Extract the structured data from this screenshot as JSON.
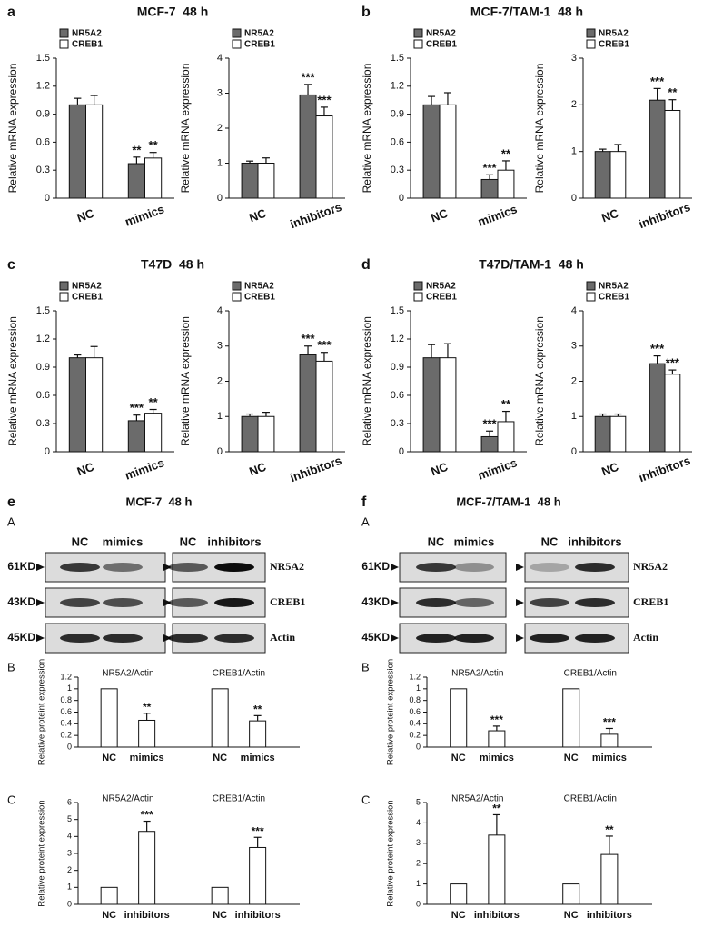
{
  "panels": [
    {
      "letter": "a",
      "title": "MCF-7  48 h"
    },
    {
      "letter": "b",
      "title": "MCF-7/TAM-1  48 h"
    },
    {
      "letter": "c",
      "title": "T47D  48 h"
    },
    {
      "letter": "d",
      "title": "T47D/TAM-1  48 h"
    }
  ],
  "blot_panels": [
    {
      "letter": "e",
      "title": "MCF-7  48 h",
      "sub_labels": [
        "A",
        "B",
        "C"
      ],
      "lanes": [
        "NC",
        "mimics",
        "NC",
        "inhibitors"
      ],
      "rows": [
        {
          "marker": "61KD",
          "protein": "NR5A2"
        },
        {
          "marker": "43KD",
          "protein": "CREB1"
        },
        {
          "marker": "45KD",
          "protein": "Actin"
        }
      ]
    },
    {
      "letter": "f",
      "title": "MCF-7/TAM-1  48 h",
      "sub_labels": [
        "A",
        "B",
        "C"
      ],
      "lanes": [
        "NC",
        "mimics",
        "NC",
        "inhibitors"
      ],
      "rows": [
        {
          "marker": "61KD",
          "protein": "NR5A2"
        },
        {
          "marker": "43KD",
          "protein": "CREB1"
        },
        {
          "marker": "45KD",
          "protein": "Actin"
        }
      ]
    }
  ],
  "chart_data": [
    {
      "type": "bar",
      "ylabel": "Relative mRNA expression",
      "categories": [
        "NC",
        "mimics"
      ],
      "ylim": [
        0,
        1.5
      ],
      "yticks": [
        0,
        0.3,
        0.6,
        0.9,
        1.2,
        1.5
      ],
      "series": [
        {
          "name": "NR5A2",
          "color": "#6b6b6b",
          "values": [
            1.0,
            0.37
          ],
          "errors": [
            0.07,
            0.07
          ],
          "annotations": [
            null,
            "**"
          ]
        },
        {
          "name": "CREB1",
          "color": "#ffffff",
          "values": [
            1.0,
            0.43
          ],
          "errors": [
            0.1,
            0.06
          ],
          "annotations": [
            null,
            "**"
          ]
        }
      ]
    },
    {
      "type": "bar",
      "ylabel": "Relative mRNA expression",
      "categories": [
        "NC",
        "inhibitors"
      ],
      "ylim": [
        0,
        4
      ],
      "yticks": [
        0,
        1,
        2,
        3,
        4
      ],
      "series": [
        {
          "name": "NR5A2",
          "color": "#6b6b6b",
          "values": [
            1.0,
            2.95
          ],
          "errors": [
            0.06,
            0.3
          ],
          "annotations": [
            null,
            "***"
          ]
        },
        {
          "name": "CREB1",
          "color": "#ffffff",
          "values": [
            1.0,
            2.35
          ],
          "errors": [
            0.15,
            0.25
          ],
          "annotations": [
            null,
            "***"
          ]
        }
      ]
    },
    {
      "type": "bar",
      "ylabel": "Relative mRNA expression",
      "categories": [
        "NC",
        "mimics"
      ],
      "ylim": [
        0,
        1.5
      ],
      "yticks": [
        0,
        0.3,
        0.6,
        0.9,
        1.2,
        1.5
      ],
      "series": [
        {
          "name": "NR5A2",
          "color": "#6b6b6b",
          "values": [
            1.0,
            0.2
          ],
          "errors": [
            0.09,
            0.05
          ],
          "annotations": [
            null,
            "***"
          ]
        },
        {
          "name": "CREB1",
          "color": "#ffffff",
          "values": [
            1.0,
            0.3
          ],
          "errors": [
            0.13,
            0.1
          ],
          "annotations": [
            null,
            "**"
          ]
        }
      ]
    },
    {
      "type": "bar",
      "ylabel": "Relative mRNA expression",
      "categories": [
        "NC",
        "inhibitors"
      ],
      "ylim": [
        0,
        3
      ],
      "yticks": [
        0,
        1,
        2,
        3
      ],
      "series": [
        {
          "name": "NR5A2",
          "color": "#6b6b6b",
          "values": [
            1.0,
            2.1
          ],
          "errors": [
            0.05,
            0.25
          ],
          "annotations": [
            null,
            "***"
          ]
        },
        {
          "name": "CREB1",
          "color": "#ffffff",
          "values": [
            1.0,
            1.88
          ],
          "errors": [
            0.15,
            0.23
          ],
          "annotations": [
            null,
            "**"
          ]
        }
      ]
    },
    {
      "type": "bar",
      "ylabel": "Relative mRNA expression",
      "categories": [
        "NC",
        "mimics"
      ],
      "ylim": [
        0,
        1.5
      ],
      "yticks": [
        0,
        0.3,
        0.6,
        0.9,
        1.2,
        1.5
      ],
      "series": [
        {
          "name": "NR5A2",
          "color": "#6b6b6b",
          "values": [
            1.0,
            0.33
          ],
          "errors": [
            0.03,
            0.06
          ],
          "annotations": [
            null,
            "***"
          ]
        },
        {
          "name": "CREB1",
          "color": "#ffffff",
          "values": [
            1.0,
            0.41
          ],
          "errors": [
            0.12,
            0.04
          ],
          "annotations": [
            null,
            "**"
          ]
        }
      ]
    },
    {
      "type": "bar",
      "ylabel": "Relative mRNA expression",
      "categories": [
        "NC",
        "inhibitors"
      ],
      "ylim": [
        0,
        4
      ],
      "yticks": [
        0,
        1,
        2,
        3,
        4
      ],
      "series": [
        {
          "name": "NR5A2",
          "color": "#6b6b6b",
          "values": [
            1.0,
            2.75
          ],
          "errors": [
            0.07,
            0.25
          ],
          "annotations": [
            null,
            "***"
          ]
        },
        {
          "name": "CREB1",
          "color": "#ffffff",
          "values": [
            1.0,
            2.57
          ],
          "errors": [
            0.12,
            0.25
          ],
          "annotations": [
            null,
            "***"
          ]
        }
      ]
    },
    {
      "type": "bar",
      "ylabel": "Relative mRNA expression",
      "categories": [
        "NC",
        "mimics"
      ],
      "ylim": [
        0,
        1.5
      ],
      "yticks": [
        0,
        0.3,
        0.6,
        0.9,
        1.2,
        1.5
      ],
      "series": [
        {
          "name": "NR5A2",
          "color": "#6b6b6b",
          "values": [
            1.0,
            0.16
          ],
          "errors": [
            0.14,
            0.06
          ],
          "annotations": [
            null,
            "***"
          ]
        },
        {
          "name": "CREB1",
          "color": "#ffffff",
          "values": [
            1.0,
            0.32
          ],
          "errors": [
            0.15,
            0.11
          ],
          "annotations": [
            null,
            "**"
          ]
        }
      ]
    },
    {
      "type": "bar",
      "ylabel": "Relative mRNA expression",
      "categories": [
        "NC",
        "inhibitors"
      ],
      "ylim": [
        0,
        4
      ],
      "yticks": [
        0,
        1,
        2,
        3,
        4
      ],
      "series": [
        {
          "name": "NR5A2",
          "color": "#6b6b6b",
          "values": [
            1.0,
            2.5
          ],
          "errors": [
            0.07,
            0.22
          ],
          "annotations": [
            null,
            "***"
          ]
        },
        {
          "name": "CREB1",
          "color": "#ffffff",
          "values": [
            1.0,
            2.2
          ],
          "errors": [
            0.07,
            0.12
          ],
          "annotations": [
            null,
            "***"
          ]
        }
      ]
    },
    {
      "type": "grouped_bar",
      "ylabel": "Relative proteint expression",
      "color": "#ffffff",
      "ylim": [
        0,
        1.2
      ],
      "yticks": [
        0,
        0.2,
        0.4,
        0.6,
        0.8,
        1,
        1.2
      ],
      "groups": [
        {
          "name": "NR5A2/Actin",
          "categories": [
            "NC",
            "mimics"
          ],
          "values": [
            1,
            0.46
          ],
          "errors": [
            null,
            0.12
          ],
          "annotations": [
            null,
            "**"
          ]
        },
        {
          "name": "CREB1/Actin",
          "categories": [
            "NC",
            "mimics"
          ],
          "values": [
            1,
            0.45
          ],
          "errors": [
            null,
            0.09
          ],
          "annotations": [
            null,
            "**"
          ]
        }
      ]
    },
    {
      "type": "grouped_bar",
      "ylabel": "Relative proteint expression",
      "color": "#ffffff",
      "ylim": [
        0,
        6
      ],
      "yticks": [
        0,
        1,
        2,
        3,
        4,
        5,
        6
      ],
      "groups": [
        {
          "name": "NR5A2/Actin",
          "categories": [
            "NC",
            "inhibitors"
          ],
          "values": [
            1,
            4.3
          ],
          "errors": [
            null,
            0.6
          ],
          "annotations": [
            null,
            "***"
          ]
        },
        {
          "name": "CREB1/Actin",
          "categories": [
            "NC",
            "inhibitors"
          ],
          "values": [
            1,
            3.35
          ],
          "errors": [
            null,
            0.6
          ],
          "annotations": [
            null,
            "***"
          ]
        }
      ]
    },
    {
      "type": "grouped_bar",
      "ylabel": "Relative proteint expression",
      "color": "#ffffff",
      "ylim": [
        0,
        1.2
      ],
      "yticks": [
        0,
        0.2,
        0.4,
        0.6,
        0.8,
        1,
        1.2
      ],
      "groups": [
        {
          "name": "NR5A2/Actin",
          "categories": [
            "NC",
            "mimics"
          ],
          "values": [
            1,
            0.28
          ],
          "errors": [
            null,
            0.08
          ],
          "annotations": [
            null,
            "***"
          ]
        },
        {
          "name": "CREB1/Actin",
          "categories": [
            "NC",
            "mimics"
          ],
          "values": [
            1,
            0.22
          ],
          "errors": [
            null,
            0.1
          ],
          "annotations": [
            null,
            "***"
          ]
        }
      ]
    },
    {
      "type": "grouped_bar",
      "ylabel": "Relative proteint expression",
      "color": "#ffffff",
      "ylim": [
        0,
        5
      ],
      "yticks": [
        0,
        1,
        2,
        3,
        4,
        5
      ],
      "groups": [
        {
          "name": "NR5A2/Actin",
          "categories": [
            "NC",
            "inhibitors"
          ],
          "values": [
            1,
            3.4
          ],
          "errors": [
            null,
            1.0
          ],
          "annotations": [
            null,
            "**"
          ]
        },
        {
          "name": "CREB1/Actin",
          "categories": [
            "NC",
            "inhibitors"
          ],
          "values": [
            1,
            2.45
          ],
          "errors": [
            null,
            0.9
          ],
          "annotations": [
            null,
            "**"
          ]
        }
      ]
    }
  ]
}
